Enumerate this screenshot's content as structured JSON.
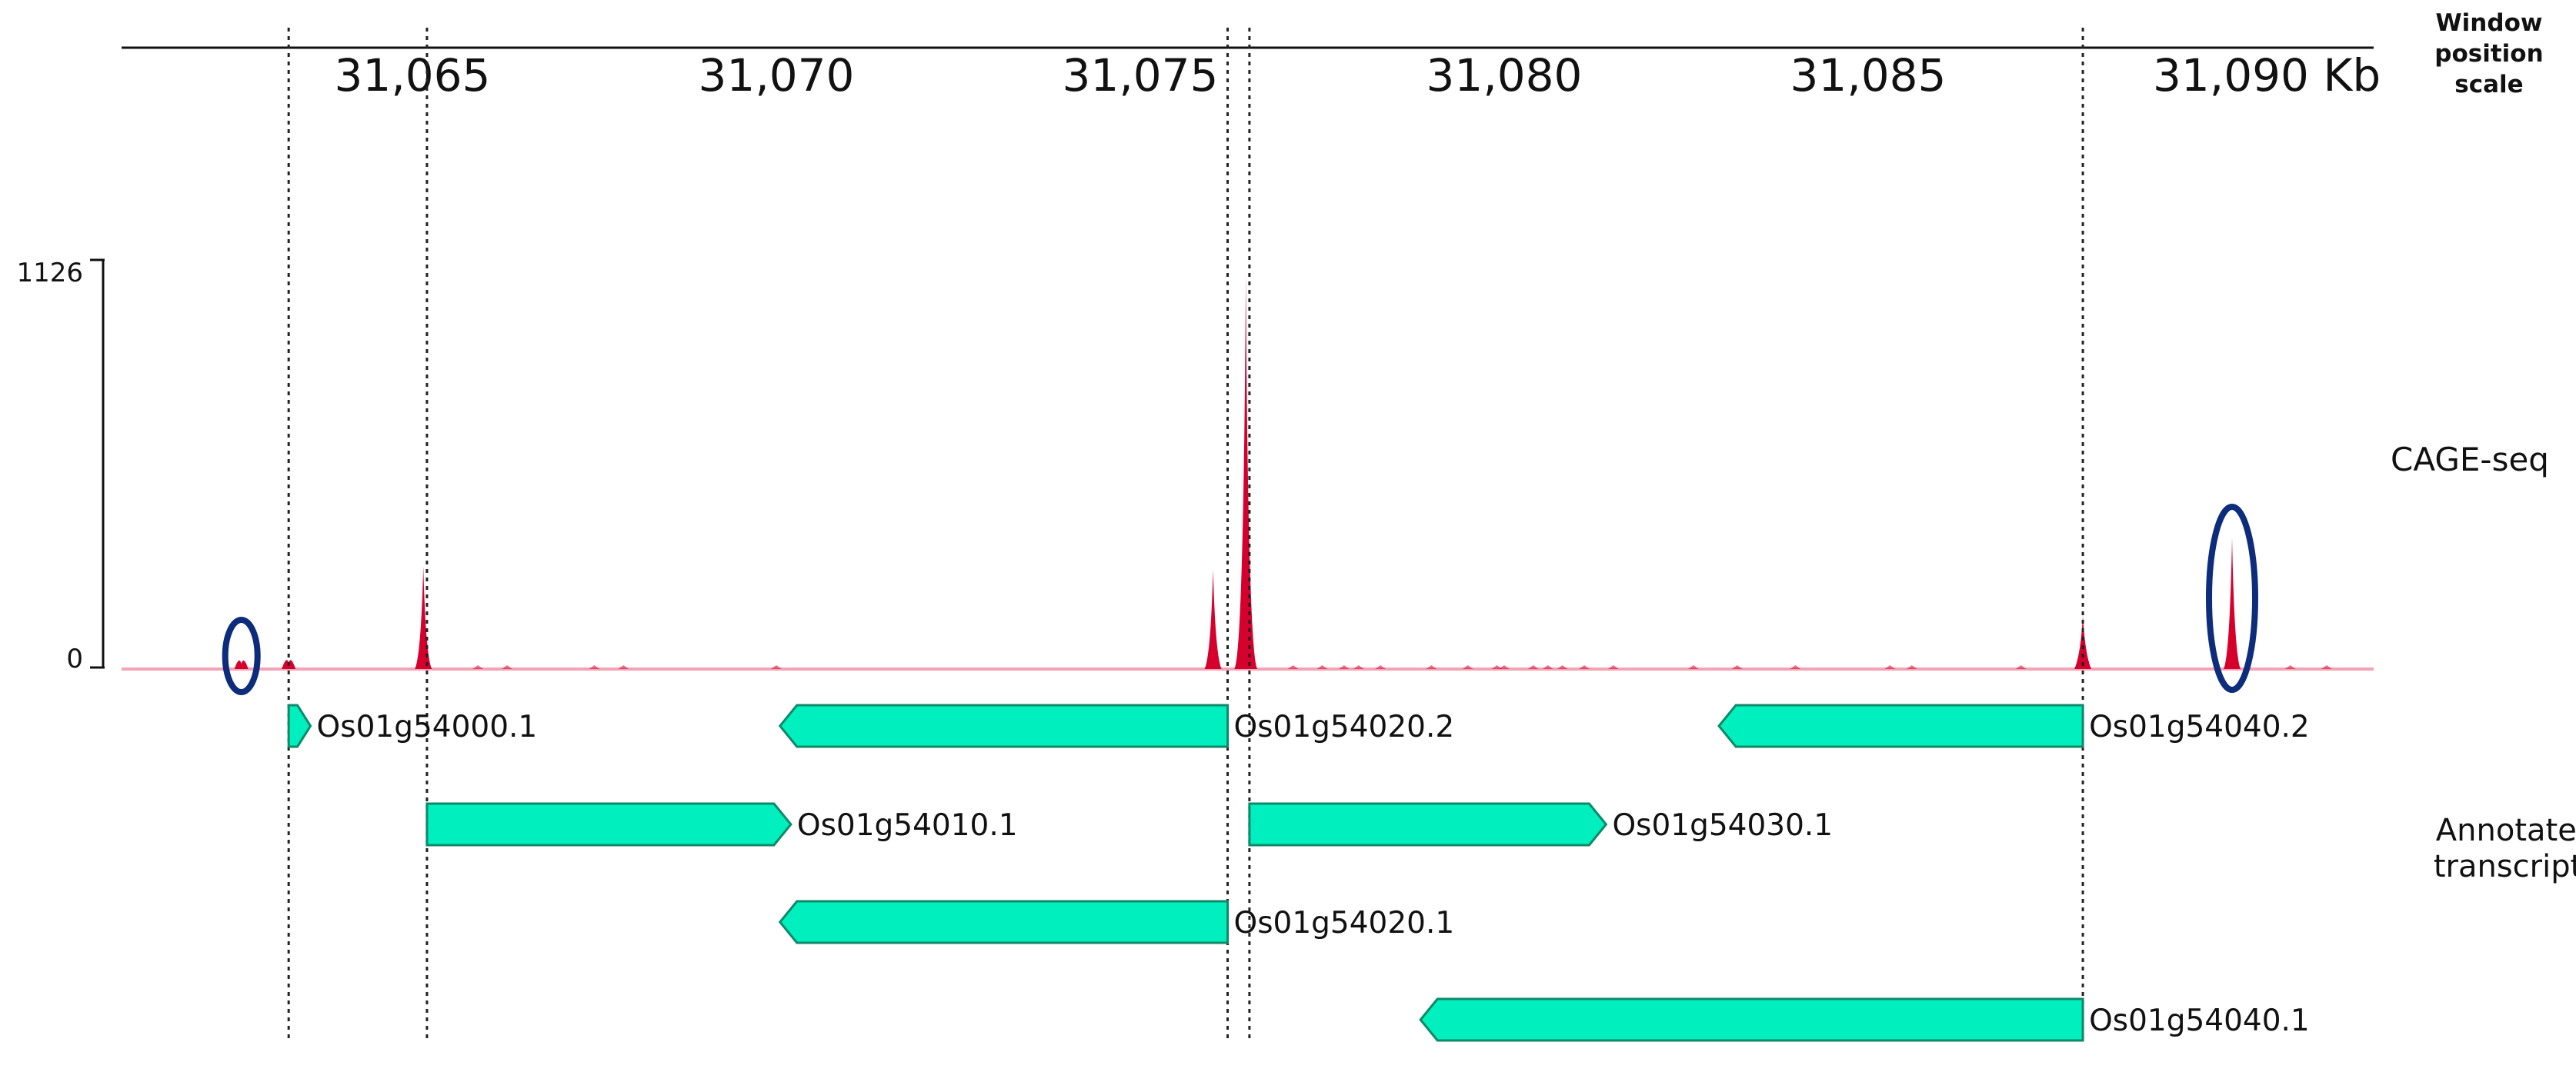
{
  "scale": {
    "axis_ticks": [
      {
        "label": "31,065"
      },
      {
        "label": "31,070"
      },
      {
        "label": "31,075"
      },
      {
        "label": "31,080"
      },
      {
        "label": "31,085"
      },
      {
        "label": "31,090 Kb"
      }
    ]
  },
  "side_labels": {
    "window_scale": [
      "Window",
      "position",
      "scale"
    ],
    "cage": "CAGE-seq",
    "annotated": [
      "Annotated",
      "transcripts"
    ]
  },
  "cage_track": {
    "y_max_label": "1126",
    "y_min_label": "0",
    "y_max": 1126,
    "peaks": [
      {
        "pos_kb": 31062.65,
        "value": 15
      },
      {
        "pos_kb": 31063.3,
        "value": 18
      },
      {
        "pos_kb": 31065.15,
        "value": 290
      },
      {
        "pos_kb": 31076.0,
        "value": 280
      },
      {
        "pos_kb": 31076.45,
        "value": 1110
      },
      {
        "pos_kb": 31087.95,
        "value": 150
      },
      {
        "pos_kb": 31090.0,
        "value": 370
      }
    ],
    "highlighted_peaks_kb": [
      31062.65,
      31090.0
    ]
  },
  "transcripts": [
    {
      "name": "Os01g54000.1",
      "start_kb": 31063.3,
      "end_kb": 31063.6,
      "strand": "+",
      "row": 0,
      "label_side": "right"
    },
    {
      "name": "Os01g54020.2",
      "start_kb": 31070.05,
      "end_kb": 31076.2,
      "strand": "-",
      "row": 0,
      "label_side": "right"
    },
    {
      "name": "Os01g54040.2",
      "start_kb": 31082.95,
      "end_kb": 31087.95,
      "strand": "-",
      "row": 0,
      "label_side": "right"
    },
    {
      "name": "Os01g54010.1",
      "start_kb": 31065.2,
      "end_kb": 31070.2,
      "strand": "+",
      "row": 1,
      "label_side": "right"
    },
    {
      "name": "Os01g54030.1",
      "start_kb": 31076.5,
      "end_kb": 31081.4,
      "strand": "+",
      "row": 1,
      "label_side": "right"
    },
    {
      "name": "Os01g54020.1",
      "start_kb": 31070.05,
      "end_kb": 31076.2,
      "strand": "-",
      "row": 2,
      "label_side": "right"
    },
    {
      "name": "Os01g54040.1",
      "start_kb": 31078.85,
      "end_kb": 31087.95,
      "strand": "-",
      "row": 3,
      "label_side": "right"
    }
  ],
  "guide_lines_kb": [
    31063.3,
    31065.2,
    31076.2,
    31076.5,
    31087.95
  ],
  "colors": {
    "peak": "#d5002c",
    "baseline": "#f3a3b5",
    "transcript_fill": "#00efbf",
    "transcript_stroke": "#0f8a67",
    "highlight": "#0d2c7c",
    "text": "#111111"
  }
}
